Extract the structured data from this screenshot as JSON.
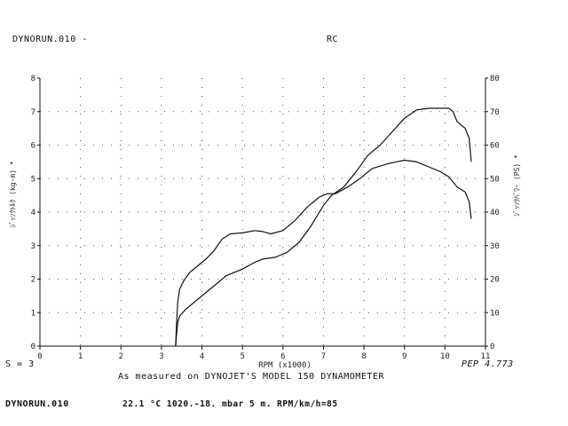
{
  "header": {
    "run_name": "DYNORUN.010 -",
    "mode": "RC"
  },
  "footer": {
    "smoothing": "S = 3",
    "pep": "PEP 4.773",
    "caption": "As measured on DYNOJET'S MODEL 150 DYNAMOMETER",
    "run_file": "DYNORUN.010",
    "conditions": "22.1 °C  1020.-18. mbar  5 m.  RPM/km/h=85"
  },
  "chart_data": {
    "type": "line",
    "xlabel": "RPM (x1000)",
    "ylabel_left": "ｼﾞｯｿｸﾄﾙｸ (kg-m) *",
    "ylabel_right": "ｼﾞｯｿｸﾊﾞﾜｰ (PS) *",
    "xlim": [
      0,
      11
    ],
    "ylim_left": [
      0,
      8
    ],
    "ylim_right": [
      0,
      80
    ],
    "x_ticks": [
      0,
      1,
      2,
      3,
      4,
      5,
      6,
      7,
      8,
      9,
      10,
      11
    ],
    "y_ticks_left": [
      0,
      1,
      2,
      3,
      4,
      5,
      6,
      7,
      8
    ],
    "y_ticks_right": [
      0,
      10,
      20,
      30,
      40,
      50,
      60,
      70,
      80
    ],
    "grid": true,
    "series": [
      {
        "axis": "left",
        "points": [
          [
            3.35,
            0
          ],
          [
            3.37,
            0.6
          ],
          [
            3.4,
            1.3
          ],
          [
            3.45,
            1.7
          ],
          [
            3.55,
            1.95
          ],
          [
            3.7,
            2.2
          ],
          [
            3.9,
            2.4
          ],
          [
            4.1,
            2.6
          ],
          [
            4.3,
            2.85
          ],
          [
            4.5,
            3.2
          ],
          [
            4.7,
            3.35
          ],
          [
            5.0,
            3.38
          ],
          [
            5.3,
            3.45
          ],
          [
            5.5,
            3.42
          ],
          [
            5.7,
            3.35
          ],
          [
            6.0,
            3.45
          ],
          [
            6.3,
            3.75
          ],
          [
            6.6,
            4.15
          ],
          [
            6.9,
            4.45
          ],
          [
            7.1,
            4.55
          ],
          [
            7.3,
            4.55
          ],
          [
            7.6,
            4.75
          ],
          [
            7.9,
            5.0
          ],
          [
            8.2,
            5.3
          ],
          [
            8.6,
            5.45
          ],
          [
            9.0,
            5.55
          ],
          [
            9.3,
            5.5
          ],
          [
            9.6,
            5.35
          ],
          [
            9.9,
            5.2
          ],
          [
            10.1,
            5.05
          ],
          [
            10.3,
            4.75
          ],
          [
            10.5,
            4.6
          ],
          [
            10.6,
            4.3
          ],
          [
            10.65,
            3.8
          ]
        ]
      },
      {
        "axis": "right",
        "points": [
          [
            3.35,
            0
          ],
          [
            3.37,
            3
          ],
          [
            3.4,
            7
          ],
          [
            3.45,
            9
          ],
          [
            3.6,
            11
          ],
          [
            3.8,
            13
          ],
          [
            4.0,
            15
          ],
          [
            4.3,
            18
          ],
          [
            4.6,
            21
          ],
          [
            5.0,
            23
          ],
          [
            5.3,
            25
          ],
          [
            5.5,
            26
          ],
          [
            5.8,
            26.5
          ],
          [
            6.1,
            28
          ],
          [
            6.4,
            31
          ],
          [
            6.7,
            36
          ],
          [
            7.0,
            42
          ],
          [
            7.2,
            45
          ],
          [
            7.5,
            47.5
          ],
          [
            7.8,
            52
          ],
          [
            8.1,
            57
          ],
          [
            8.4,
            60
          ],
          [
            8.7,
            64
          ],
          [
            9.0,
            68
          ],
          [
            9.3,
            70.5
          ],
          [
            9.6,
            71
          ],
          [
            9.9,
            71
          ],
          [
            10.1,
            71
          ],
          [
            10.2,
            70
          ],
          [
            10.3,
            67
          ],
          [
            10.4,
            66
          ],
          [
            10.5,
            65
          ],
          [
            10.6,
            62
          ],
          [
            10.65,
            55
          ]
        ]
      }
    ]
  }
}
